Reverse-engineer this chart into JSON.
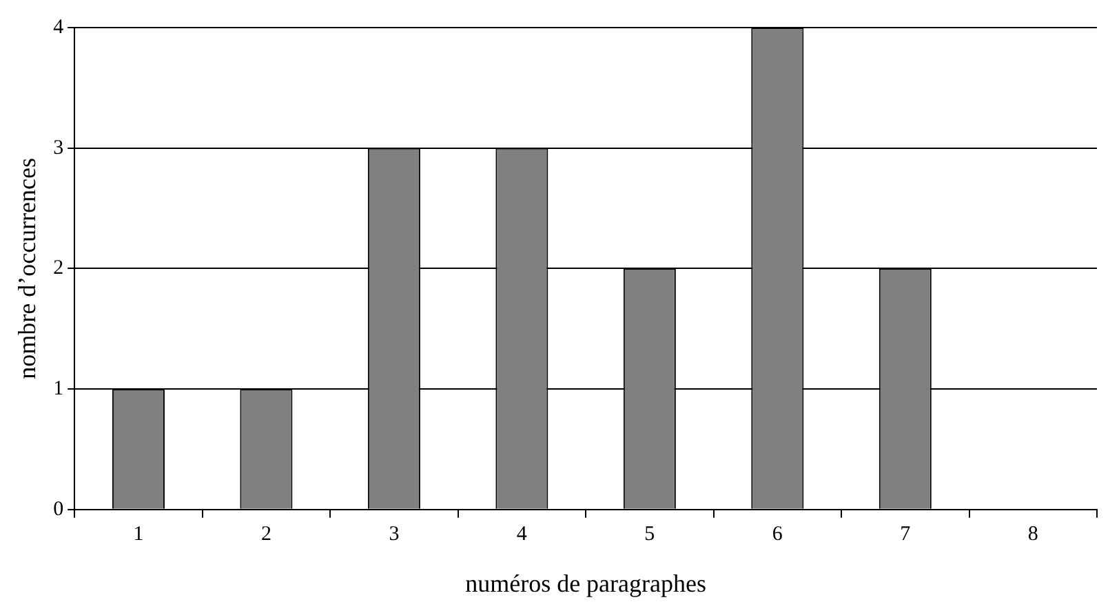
{
  "chart_data": {
    "type": "bar",
    "xlabel": "numéros de paragraphes",
    "ylabel": "nombre d’occurrences",
    "categories": [
      "1",
      "2",
      "3",
      "4",
      "5",
      "6",
      "7",
      "8"
    ],
    "values": [
      1,
      1,
      3,
      3,
      2,
      4,
      2,
      0
    ],
    "color": "#808080",
    "ylim": [
      0,
      4
    ],
    "yticks": [
      0,
      1,
      2,
      3,
      4
    ],
    "grid": "y",
    "legend": false
  }
}
